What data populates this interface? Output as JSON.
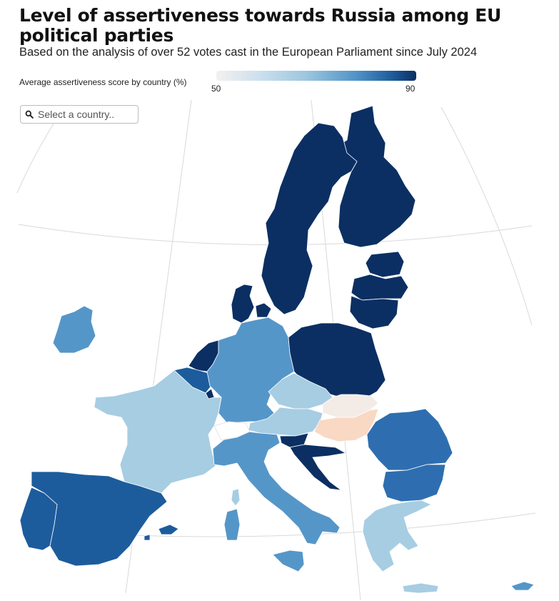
{
  "title": "Level of assertiveness towards Russia among EU political parties",
  "subtitle": "Based on the analysis of over 52 votes cast in the European Parliament since July 2024",
  "legend": {
    "title": "Average assertiveness score by country (%)",
    "min": "50",
    "max": "90",
    "colors": [
      "#f3f1ef",
      "#cfe1ee",
      "#9cc6df",
      "#4f93c7",
      "#1d5c9c",
      "#0b2f63"
    ]
  },
  "search": {
    "placeholder": "Select a country..",
    "icon": "search-icon"
  },
  "colors": {
    "darkest": "#0b2f63",
    "dark": "#1d5c9c",
    "medium_dark": "#2e6eb0",
    "medium": "#5596c9",
    "light": "#a7cde3",
    "very_light": "#f3ebe6",
    "peach": "#f9d8c4",
    "no_data": "#ffffff"
  }
}
